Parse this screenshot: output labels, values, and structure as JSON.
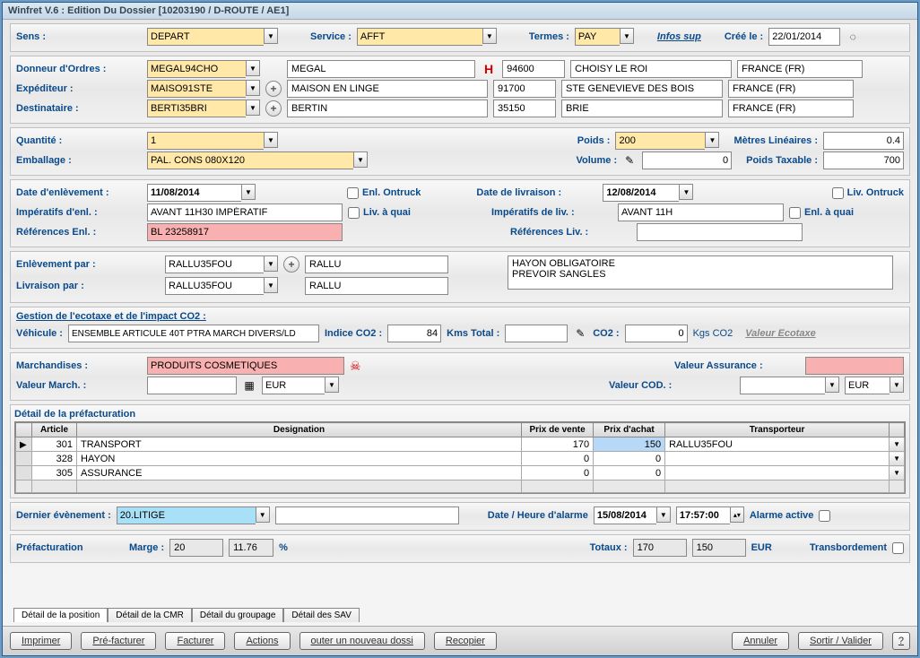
{
  "window": {
    "title": "Winfret V.6 : Edition Du Dossier [10203190 / D-ROUTE / AE1]"
  },
  "header": {
    "sens_label": "Sens :",
    "sens_value": "DEPART",
    "service_label": "Service :",
    "service_value": "AFFT",
    "termes_label": "Termes :",
    "termes_value": "PAY",
    "infos_sup": "Infos sup",
    "cree_le_label": "Créé le :",
    "cree_le_value": "22/01/2014"
  },
  "parties": {
    "donneur_label": "Donneur d'Ordres :",
    "donneur_code": "MEGAL94CHO",
    "donneur_name": "MEGAL",
    "donneur_zip": "94600",
    "donneur_city": "CHOISY LE ROI",
    "donneur_country": "FRANCE (FR)",
    "exped_label": "Expéditeur :",
    "exped_code": "MAISO91STE",
    "exped_name": "MAISON EN LINGE",
    "exped_zip": "91700",
    "exped_city": "STE GENEVIEVE DES BOIS",
    "exped_country": "FRANCE (FR)",
    "dest_label": "Destinataire :",
    "dest_code": "BERTI35BRI",
    "dest_name": "BERTIN",
    "dest_zip": "35150",
    "dest_city": "BRIE",
    "dest_country": "FRANCE (FR)",
    "h_flag": "H"
  },
  "qty": {
    "quantite_label": "Quantité :",
    "quantite_value": "1",
    "emballage_label": "Emballage :",
    "emballage_value": "PAL. CONS 080X120",
    "poids_label": "Poids :",
    "poids_value": "200",
    "volume_label": "Volume :",
    "volume_value": "0",
    "metres_label": "Mètres Linéaires :",
    "metres_value": "0.4",
    "taxable_label": "Poids Taxable :",
    "taxable_value": "700"
  },
  "dates": {
    "enl_date_label": "Date d'enlèvement :",
    "enl_date": "11/08/2014",
    "enl_ontruck": "Enl. Ontruck",
    "imp_enl_label": "Impératifs d'enl. :",
    "imp_enl": "AVANT 11H30 IMPÉRATIF",
    "liv_quai": "Liv. à quai",
    "ref_enl_label": "Références Enl. :",
    "ref_enl": "BL 23258917",
    "liv_date_label": "Date de livraison :",
    "liv_date": "12/08/2014",
    "liv_ontruck": "Liv. Ontruck",
    "imp_liv_label": "Impératifs de liv. :",
    "imp_liv": "AVANT 11H",
    "enl_quai": "Enl. à quai",
    "ref_liv_label": "Références Liv. :"
  },
  "carriers": {
    "enl_par_label": "Enlèvement par :",
    "enl_par_code": "RALLU35FOU",
    "enl_par_name": "RALLU",
    "liv_par_label": "Livraison par :",
    "liv_par_code": "RALLU35FOU",
    "liv_par_name": "RALLU",
    "notes": "HAYON OBLIGATOIRE\nPREVOIR SANGLES"
  },
  "ecotaxe": {
    "title": "Gestion de l'ecotaxe et de l'impact CO2 :",
    "vehicule_label": "Véhicule :",
    "vehicule": "ENSEMBLE ARTICULE 40T PTRA MARCH DIVERS/LD",
    "indice_label": "Indice CO2 :",
    "indice": "84",
    "kms_label": "Kms Total :",
    "co2_label": "CO2 :",
    "co2_value": "0",
    "co2_unit": "Kgs CO2",
    "valeur_link": "Valeur Ecotaxe"
  },
  "merch": {
    "march_label": "Marchandises :",
    "march_value": "PRODUITS COSMETIQUES",
    "valeur_march_label": "Valeur March. :",
    "currency1": "EUR",
    "assurance_label": "Valeur Assurance :",
    "cod_label": "Valeur COD. :",
    "currency2": "EUR"
  },
  "prefact": {
    "title": "Détail de la préfacturation",
    "cols": {
      "article": "Article",
      "designation": "Designation",
      "vente": "Prix de vente",
      "achat": "Prix d'achat",
      "transporteur": "Transporteur"
    },
    "rows": [
      {
        "article": "301",
        "designation": "TRANSPORT",
        "vente": "170",
        "achat": "150",
        "transporteur": "RALLU35FOU"
      },
      {
        "article": "328",
        "designation": "HAYON",
        "vente": "0",
        "achat": "0",
        "transporteur": ""
      },
      {
        "article": "305",
        "designation": "ASSURANCE",
        "vente": "0",
        "achat": "0",
        "transporteur": ""
      }
    ]
  },
  "event": {
    "dernier_label": "Dernier évènement :",
    "dernier_value": "20.LITIGE",
    "datehr_label": "Date / Heure d'alarme",
    "date": "15/08/2014",
    "time": "17:57:00",
    "alarme_label": "Alarme active"
  },
  "totals": {
    "prefact_label": "Préfacturation",
    "marge_label": "Marge :",
    "marge_val": "20",
    "marge_pct": "11.76",
    "pct_sign": "%",
    "totaux_label": "Totaux :",
    "tot1": "170",
    "tot2": "150",
    "tot_cur": "EUR",
    "transb_label": "Transbordement"
  },
  "tabs": {
    "t1": "Détail de la position",
    "t2": "Détail de la CMR",
    "t3": "Détail du groupage",
    "t4": "Détail des SAV"
  },
  "buttons": {
    "imprimer": "Imprimer",
    "prefacturer": "Pré-facturer",
    "facturer": "Facturer",
    "actions": "Actions",
    "nouveau": "outer un nouveau dossi",
    "recopier": "Recopier",
    "annuler": "Annuler",
    "sortir": "Sortir / Valider",
    "help": "?"
  }
}
